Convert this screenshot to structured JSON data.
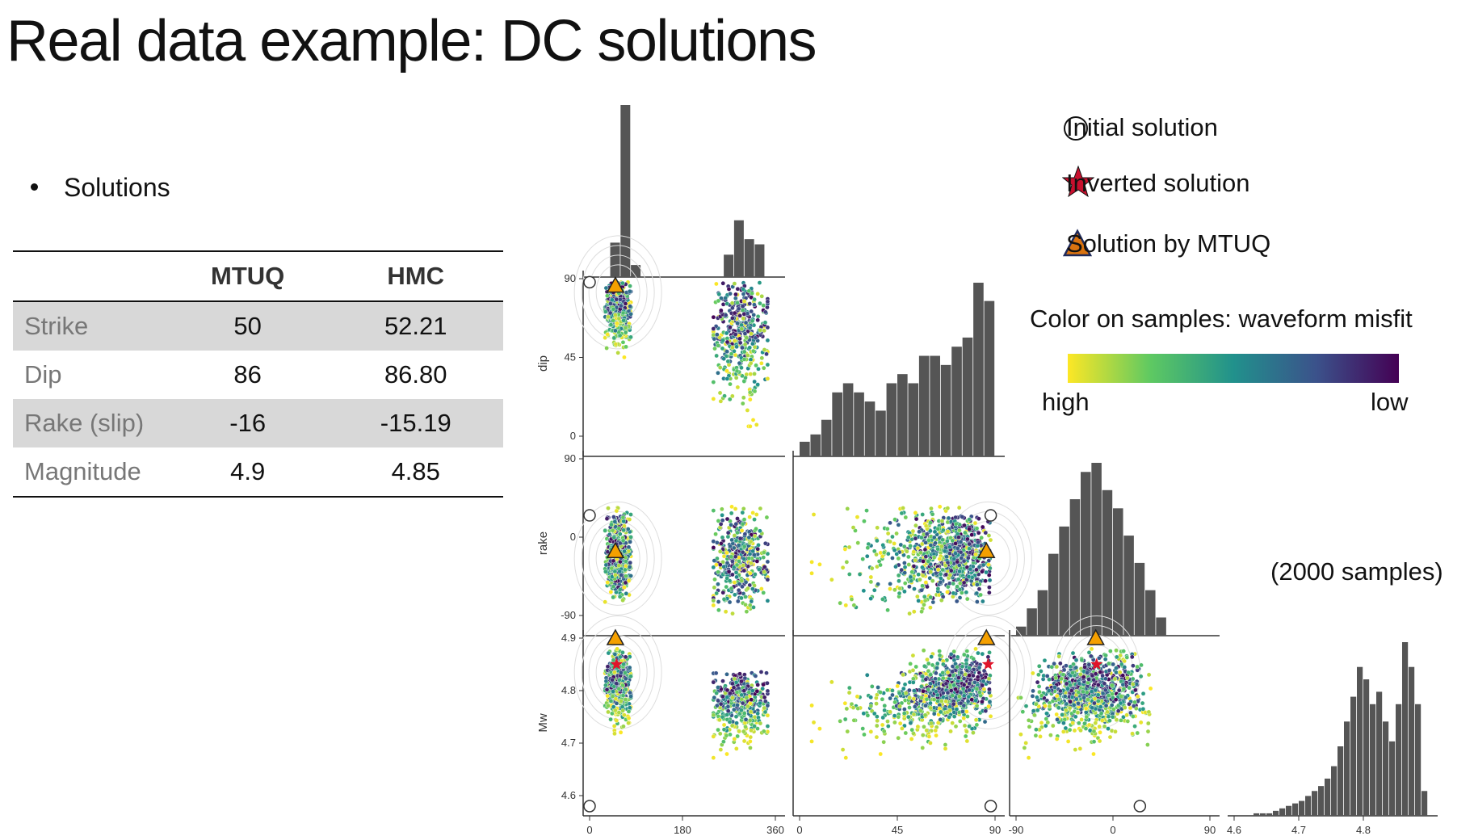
{
  "slide": {
    "title": "Real data example: DC solutions",
    "bullet": "Solutions"
  },
  "table": {
    "headers": [
      "",
      "MTUQ",
      "HMC"
    ],
    "rows": [
      {
        "label": "Strike",
        "mtuq": "50",
        "hmc": "52.21"
      },
      {
        "label": "Dip",
        "mtuq": "86",
        "hmc": "86.80"
      },
      {
        "label": "Rake (slip)",
        "mtuq": "-16",
        "hmc": "-15.19"
      },
      {
        "label": "Magnitude",
        "mtuq": "4.9",
        "hmc": "4.85"
      }
    ]
  },
  "legend": {
    "initial": "Initial solution",
    "inverted": "Inverted solution",
    "mtuq": "Solution by MTUQ"
  },
  "colorbar": {
    "title": "Color on samples: waveform misfit",
    "left": "high",
    "right": "low"
  },
  "samples_note": "(2000 samples)",
  "colors": {
    "hist": "#555555",
    "initial": "#ffffff",
    "inverted": "#e0142a",
    "mtuq": "#f5a000",
    "cmap_high": "#fde725",
    "cmap_low": "#440154"
  },
  "chart_data": {
    "type": "scatter",
    "subtype": "corner-plot",
    "variables": [
      "strike",
      "dip",
      "rake",
      "Mw"
    ],
    "ranges": {
      "strike": [
        0,
        360
      ],
      "dip": [
        0,
        90
      ],
      "rake": [
        -90,
        90
      ],
      "Mw": [
        4.6,
        4.9
      ]
    },
    "ticks": {
      "strike": [
        "0",
        "180",
        "360"
      ],
      "dip": [
        "0",
        "45",
        "90"
      ],
      "rake": [
        "-90",
        "0",
        "90"
      ],
      "Mw": [
        "4.6",
        "4.7",
        "4.8",
        "4.9"
      ]
    },
    "x_tick_values": {
      "strike": [
        0,
        180,
        360
      ],
      "dip": [
        0,
        45,
        90
      ],
      "rake": [
        -90,
        0,
        90
      ],
      "Mw": [
        4.6,
        4.7,
        4.8
      ]
    },
    "y_tick_values": {
      "dip": [
        0,
        45,
        90
      ],
      "rake": [
        -90,
        0,
        90
      ],
      "Mw": [
        4.6,
        4.7,
        4.8,
        4.9
      ]
    },
    "initial_solution": {
      "strike": 0,
      "dip": 88,
      "rake": 25,
      "Mw": 4.58
    },
    "inverted_solution": {
      "strike": 52.21,
      "dip": 86.8,
      "rake": -15.19,
      "Mw": 4.85
    },
    "mtuq_solution": {
      "strike": 50,
      "dip": 86,
      "rake": -16,
      "Mw": 4.9
    },
    "histograms": {
      "strike": {
        "bins": [
          [
            0,
            20
          ],
          [
            20,
            40
          ],
          [
            40,
            60
          ],
          [
            60,
            80
          ],
          [
            80,
            100
          ],
          [
            100,
            120
          ],
          [
            120,
            140
          ],
          [
            140,
            160
          ],
          [
            160,
            180
          ],
          [
            180,
            200
          ],
          [
            200,
            220
          ],
          [
            220,
            240
          ],
          [
            240,
            260
          ],
          [
            260,
            280
          ],
          [
            280,
            300
          ],
          [
            300,
            320
          ],
          [
            320,
            340
          ],
          [
            340,
            360
          ]
        ],
        "counts": [
          0,
          0,
          200,
          1000,
          70,
          0,
          0,
          0,
          0,
          0,
          0,
          0,
          0,
          130,
          330,
          220,
          190,
          0
        ]
      },
      "dip": {
        "bins": [
          [
            0,
            5
          ],
          [
            5,
            10
          ],
          [
            10,
            15
          ],
          [
            15,
            20
          ],
          [
            20,
            25
          ],
          [
            25,
            30
          ],
          [
            30,
            35
          ],
          [
            35,
            40
          ],
          [
            40,
            45
          ],
          [
            45,
            50
          ],
          [
            50,
            55
          ],
          [
            55,
            60
          ],
          [
            60,
            65
          ],
          [
            65,
            70
          ],
          [
            70,
            75
          ],
          [
            75,
            80
          ],
          [
            80,
            85
          ],
          [
            85,
            90
          ],
          [
            90,
            95
          ]
        ],
        "counts": [
          8,
          12,
          20,
          35,
          40,
          35,
          30,
          25,
          40,
          45,
          40,
          55,
          55,
          50,
          60,
          65,
          95,
          85,
          0
        ]
      },
      "rake": {
        "bins": [
          [
            -90,
            -80
          ],
          [
            -80,
            -70
          ],
          [
            -70,
            -60
          ],
          [
            -60,
            -50
          ],
          [
            -50,
            -40
          ],
          [
            -40,
            -30
          ],
          [
            -30,
            -20
          ],
          [
            -20,
            -10
          ],
          [
            -10,
            0
          ],
          [
            0,
            10
          ],
          [
            10,
            20
          ],
          [
            20,
            30
          ],
          [
            30,
            40
          ],
          [
            40,
            50
          ]
        ],
        "counts": [
          5,
          15,
          25,
          45,
          60,
          75,
          90,
          95,
          80,
          70,
          55,
          40,
          25,
          10
        ]
      },
      "Mw": {
        "bins": [
          [
            4.63,
            4.64
          ],
          [
            4.64,
            4.65
          ],
          [
            4.65,
            4.66
          ],
          [
            4.66,
            4.67
          ],
          [
            4.67,
            4.68
          ],
          [
            4.68,
            4.69
          ],
          [
            4.69,
            4.7
          ],
          [
            4.7,
            4.71
          ],
          [
            4.71,
            4.72
          ],
          [
            4.72,
            4.73
          ],
          [
            4.73,
            4.74
          ],
          [
            4.74,
            4.75
          ],
          [
            4.75,
            4.76
          ],
          [
            4.76,
            4.77
          ],
          [
            4.77,
            4.78
          ],
          [
            4.78,
            4.79
          ],
          [
            4.79,
            4.8
          ],
          [
            4.8,
            4.81
          ],
          [
            4.81,
            4.82
          ],
          [
            4.82,
            4.83
          ],
          [
            4.83,
            4.84
          ],
          [
            4.84,
            4.85
          ],
          [
            4.85,
            4.86
          ],
          [
            4.86,
            4.87
          ],
          [
            4.87,
            4.88
          ],
          [
            4.88,
            4.89
          ],
          [
            4.89,
            4.9
          ]
        ],
        "counts": [
          1,
          1,
          1,
          2,
          3,
          4,
          5,
          6,
          8,
          10,
          12,
          15,
          20,
          28,
          38,
          48,
          60,
          55,
          45,
          50,
          38,
          30,
          45,
          70,
          60,
          45,
          10
        ]
      }
    },
    "sample_clusters": [
      {
        "strike": [
          30,
          80
        ],
        "dip": [
          45,
          88
        ],
        "rake": [
          -75,
          35
        ],
        "Mw": [
          4.71,
          4.88
        ]
      },
      {
        "strike": [
          240,
          345
        ],
        "dip": [
          5,
          88
        ],
        "rake": [
          -90,
          35
        ],
        "Mw": [
          4.67,
          4.82
        ]
      }
    ],
    "n_samples": 2000,
    "colormap": "viridis (yellow = high misfit, purple = low misfit)"
  }
}
